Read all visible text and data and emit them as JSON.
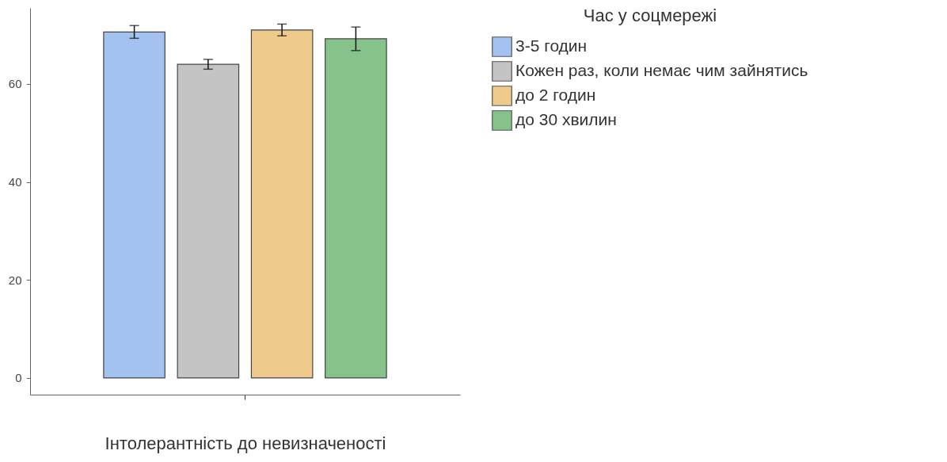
{
  "chart_data": {
    "type": "bar",
    "xlabel": "Інтолерантність до невизначеності",
    "legend_title": "Час у соцмережі",
    "categories": [
      null
    ],
    "series": [
      {
        "name": "3-5 годин",
        "color": "#a4c2f0",
        "values": [
          70.6
        ],
        "errors": [
          1.3
        ]
      },
      {
        "name": "Кожен раз, коли немає чим зайнятись",
        "color": "#c4c4c4",
        "values": [
          64.0
        ],
        "errors": [
          1.0
        ]
      },
      {
        "name": "до 2 годин",
        "color": "#efcb8b",
        "values": [
          71.0
        ],
        "errors": [
          1.2
        ]
      },
      {
        "name": "до 30 хвилин",
        "color": "#86c38a",
        "values": [
          69.2
        ],
        "errors": [
          2.4
        ]
      }
    ],
    "ylim": [
      -3.4,
      75.5
    ],
    "yticks": [
      0,
      20,
      40,
      60
    ],
    "grid": false,
    "legend": "right",
    "tick_labels": "y"
  }
}
